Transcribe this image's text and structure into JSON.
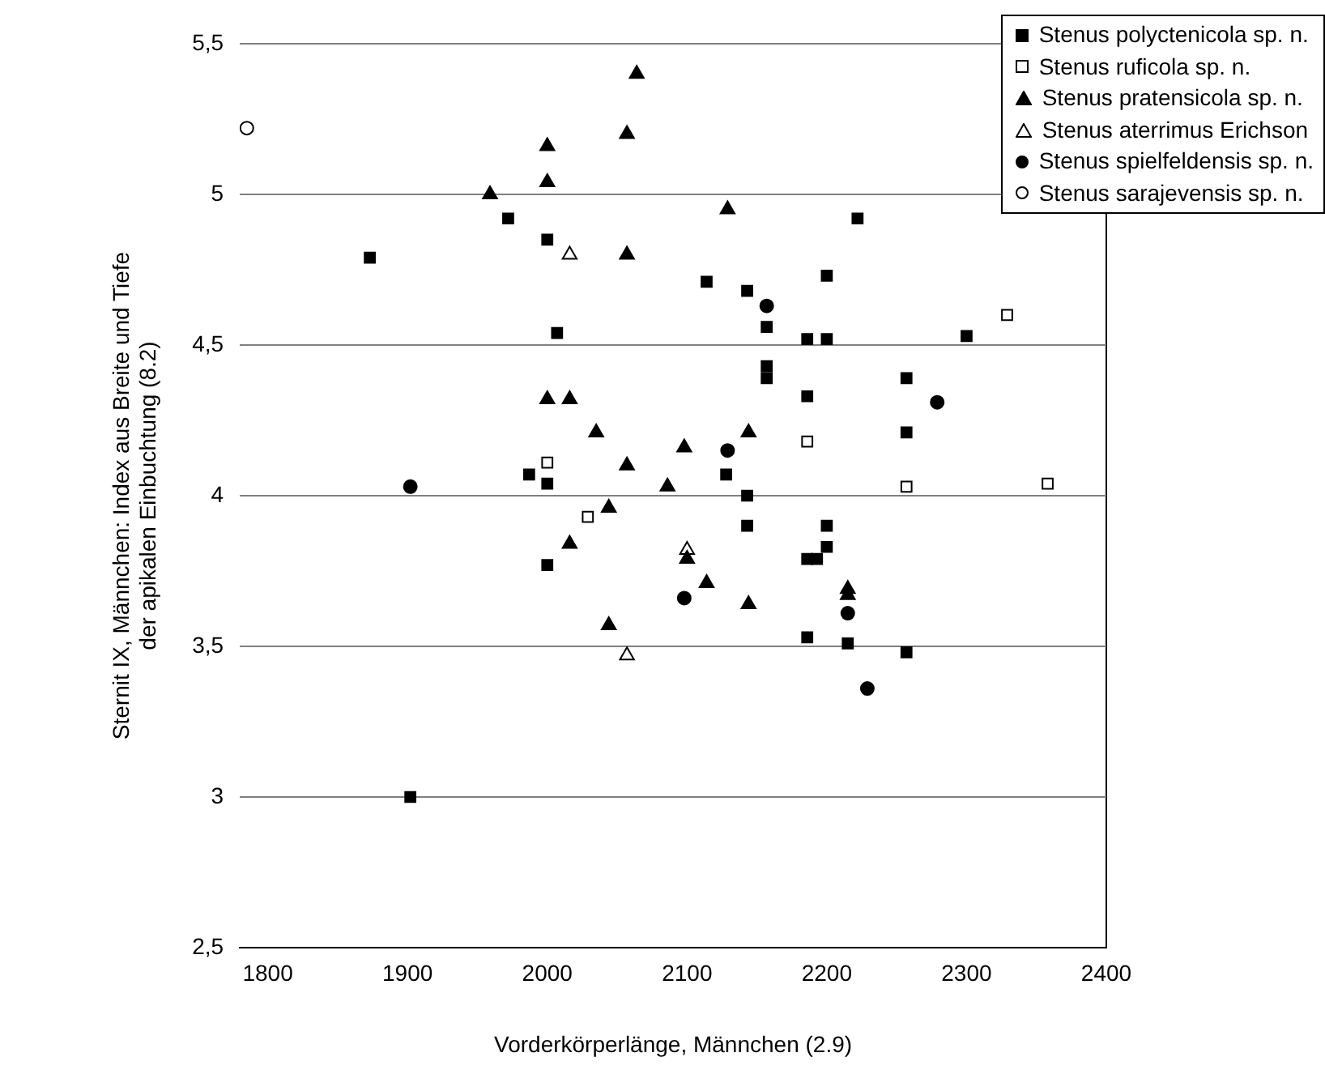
{
  "chart_data": {
    "type": "scatter",
    "xlabel": "Vorderkörperlänge, Männchen (2.9)",
    "ylabel": "Sternit IX, Männchen: Index aus Breite und Tiefe\nder apikalen Einbuchtung (8.2)",
    "xlim": [
      1780,
      2400
    ],
    "xticks": [
      1800,
      1900,
      2000,
      2100,
      2200,
      2300,
      2400
    ],
    "ylim": [
      2.5,
      5.5
    ],
    "yticks": [
      {
        "value": 2.5,
        "label": "2,5"
      },
      3,
      {
        "value": 3.5,
        "label": "3,5"
      },
      4,
      {
        "value": 4.5,
        "label": "4,5"
      },
      5,
      {
        "value": 5.5,
        "label": "5,5"
      }
    ],
    "grid": "y",
    "legend": "top right",
    "series": [
      {
        "name": "Stenus polyctenicola sp. n.",
        "color": "#000000",
        "marker": "square",
        "x": [
          1972,
          2000,
          1873,
          2007,
          1987,
          2000,
          2128,
          2143,
          2222,
          2114,
          2143,
          2200,
          2157,
          2186,
          2200,
          2300,
          2157,
          2157,
          2186,
          2257,
          2257,
          2143,
          2200,
          2186,
          2193,
          2200,
          2000,
          2186,
          2215,
          2257,
          1902
        ],
        "values": [
          4.92,
          4.85,
          4.79,
          4.54,
          4.07,
          4.04,
          4.07,
          4.0,
          4.92,
          4.71,
          4.68,
          4.73,
          4.56,
          4.52,
          4.52,
          4.53,
          4.43,
          4.39,
          4.33,
          4.39,
          4.21,
          3.9,
          3.9,
          3.79,
          3.79,
          3.83,
          3.77,
          3.53,
          3.51,
          3.48,
          3.0
        ]
      },
      {
        "name": "Stenus ruficola sp. n.",
        "color": "#ffffff",
        "marker": "square",
        "x": [
          2000,
          2186,
          2257,
          2358,
          2329,
          2029
        ],
        "values": [
          4.11,
          4.18,
          4.03,
          4.04,
          4.6,
          3.93
        ]
      },
      {
        "name": "Stenus pratensicola sp. n.",
        "color": "#000000",
        "marker": "triangle",
        "x": [
          2064,
          2057,
          2000,
          2000,
          1959,
          2057,
          2129,
          2000,
          2016,
          2035,
          2098,
          2057,
          2086,
          2144,
          2044,
          2016,
          2100,
          2114,
          2144,
          2215,
          2215,
          2044
        ],
        "values": [
          5.4,
          5.2,
          5.16,
          5.04,
          5.0,
          4.8,
          4.95,
          4.32,
          4.32,
          4.21,
          4.16,
          4.1,
          4.03,
          4.21,
          3.96,
          3.84,
          3.79,
          3.71,
          3.64,
          3.69,
          3.67,
          3.57
        ]
      },
      {
        "name": "Stenus aterrimus Erichson",
        "color": "#ffffff",
        "marker": "triangle",
        "x": [
          2016,
          2100,
          2057
        ],
        "values": [
          4.8,
          3.82,
          3.47
        ]
      },
      {
        "name": "Stenus spielfeldensis sp. n.",
        "color": "#000000",
        "marker": "circle",
        "x": [
          1902,
          2157,
          2279,
          2129,
          2098,
          2215,
          2229
        ],
        "values": [
          4.03,
          4.63,
          4.31,
          4.15,
          3.66,
          3.61,
          3.36
        ]
      },
      {
        "name": "Stenus sarajevensis sp. n.",
        "color": "#ffffff",
        "marker": "circle",
        "x": [
          1785
        ],
        "values": [
          5.22
        ]
      }
    ]
  }
}
